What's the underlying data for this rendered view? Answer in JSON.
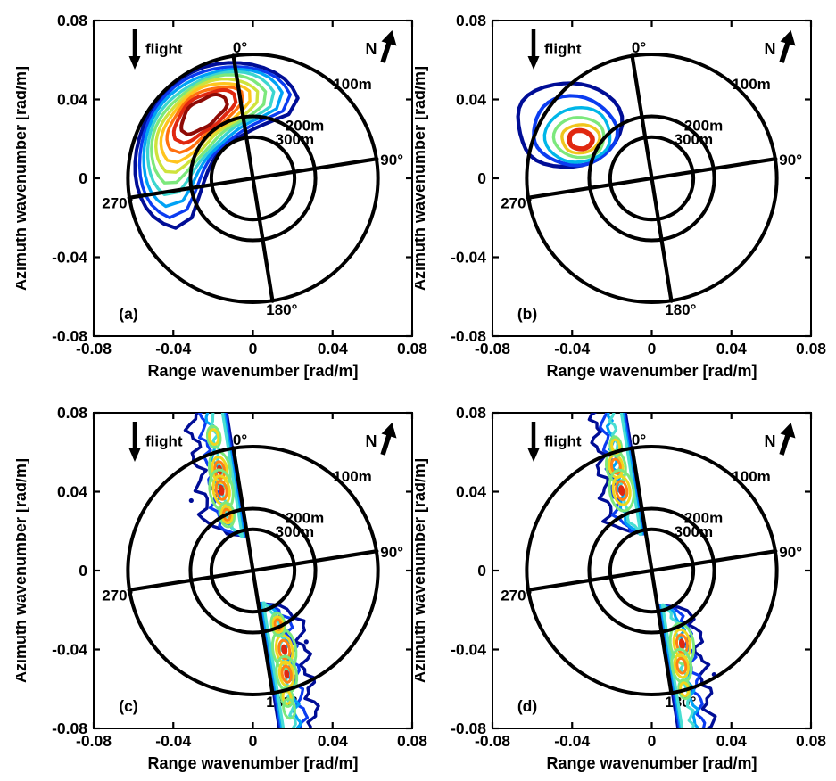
{
  "figure": {
    "background": "#ffffff",
    "description": "Four-panel figure of SAR ocean wave spectra in wavenumber space with polar wavelength/direction overlay"
  },
  "chart_data": {
    "type": "heatmap",
    "subtype": "contour-spectra",
    "layout": "2x2",
    "axes": {
      "x": {
        "label": "Range wavenumber [rad/m]",
        "range": [
          -0.08,
          0.08
        ],
        "tick_values": [
          -0.08,
          -0.04,
          0,
          0.04,
          0.08
        ],
        "ticks": [
          "-0.08",
          "-0.04",
          "0",
          "0.04",
          "0.08"
        ]
      },
      "y": {
        "label": "Azimuth wavenumber [rad/m]",
        "range": [
          -0.08,
          0.08
        ],
        "tick_values": [
          0.08,
          0.04,
          0,
          -0.04,
          -0.08
        ],
        "ticks": [
          "0.08",
          "0.04",
          "0",
          "-0.04",
          "-0.08"
        ]
      }
    },
    "polar_overlay": {
      "rotation_deg": 9,
      "outer_radius": 0.063,
      "rings": [
        {
          "label": "100m",
          "radius": 0.0628,
          "label_pos": [
            0.05,
            0.048
          ]
        },
        {
          "label": "200m",
          "radius": 0.0314,
          "label_pos": [
            0.026,
            0.027
          ]
        },
        {
          "label": "300m",
          "radius": 0.0209,
          "label_pos": [
            0.021,
            0.02
          ]
        }
      ],
      "angle_labels": [
        {
          "label": "0°",
          "pos": [
            -0.0065,
            0.0665
          ],
          "anchor": "middle"
        },
        {
          "label": "90°",
          "pos": [
            0.064,
            0.0095
          ],
          "anchor": "start"
        },
        {
          "label": "180°",
          "pos": [
            0.0145,
            -0.0665
          ],
          "anchor": "middle"
        },
        {
          "label": "270°",
          "pos": [
            -0.068,
            -0.0125
          ],
          "anchor": "middle"
        }
      ]
    },
    "annotations": {
      "flight_label": "flight",
      "north_label": "N"
    },
    "hot_palette": [
      "#7ce87c",
      "#f0d61e",
      "#ff8214",
      "#e02810"
    ],
    "panels": [
      {
        "id": "a",
        "label": "(a)",
        "kind": "crescent",
        "description": "Broad crescent-shaped spectral lobe in upper-left quadrant, peak wavelength ~150 m travelling toward ~320 deg",
        "peak_kx": -0.028,
        "peak_ky": 0.033,
        "palette": [
          "#000d96",
          "#0b3cf0",
          "#00a2f5",
          "#3cd6cf",
          "#7ce87c",
          "#cfe33c",
          "#ffc41e",
          "#ff700f",
          "#e02810",
          "#8e0b06"
        ],
        "crescent": {
          "r_mid": 0.0415,
          "levels": [
            {
              "a1": -123.0,
              "a2": 29.0,
              "hw": 0.0205,
              "color": 0,
              "sw": 4.0
            },
            {
              "a1": -115.5,
              "a2": 23.8,
              "hw": 0.0189,
              "color": 1,
              "sw": 3.4
            },
            {
              "a1": -108.0,
              "a2": 18.6,
              "hw": 0.0174,
              "color": 2,
              "sw": 3.4
            },
            {
              "a1": -100.5,
              "a2": 13.4,
              "hw": 0.0158,
              "color": 3,
              "sw": 3.4
            },
            {
              "a1": -93.0,
              "a2": 8.2,
              "hw": 0.0143,
              "color": 4,
              "sw": 3.4
            },
            {
              "a1": -85.5,
              "a2": 3.0,
              "hw": 0.0127,
              "color": 5,
              "sw": 3.4
            },
            {
              "a1": -78.0,
              "a2": -2.2,
              "hw": 0.0112,
              "color": 6,
              "sw": 3.4
            },
            {
              "a1": -70.5,
              "a2": -7.4,
              "hw": 0.0096,
              "color": 7,
              "sw": 3.4
            },
            {
              "a1": -63.0,
              "a2": -12.6,
              "hw": 0.0081,
              "color": 8,
              "sw": 4.0
            },
            {
              "a1": -56.0,
              "a2": -19.0,
              "hw": 0.0064,
              "color": 9,
              "sw": 4.0
            }
          ],
          "specks": [
            [
              0.004,
              0.0305
            ],
            [
              0.012,
              0.03
            ]
          ]
        }
      },
      {
        "id": "b",
        "label": "(b)",
        "kind": "rings",
        "description": "Single compact spectral peak in upper-left quadrant near kx=-0.036, ky=0.020 (wavelength ~150 m)",
        "peak_kx": -0.036,
        "peak_ky": 0.02,
        "palette": [
          "#000d96",
          "#0b3cf0",
          "#00b6e8",
          "#7ce87c",
          "#f0c61e",
          "#e02810"
        ],
        "rings": {
          "levels": [
            {
              "cx": -0.042,
              "cy": 0.027,
              "rx": 0.026,
              "ry": 0.0225,
              "color": 0,
              "wb": 0.06,
              "ph": 0.8,
              "sw": 4.2
            },
            {
              "cx": -0.039,
              "cy": 0.0242,
              "rx": 0.021,
              "ry": 0.0172,
              "color": 1,
              "wb": 0.045,
              "ph": 2.2,
              "sw": 4.0
            },
            {
              "cx": -0.037,
              "cy": 0.022,
              "rx": 0.0164,
              "ry": 0.014,
              "color": 2,
              "wb": 0.04,
              "ph": 3.9,
              "sw": 3.4
            },
            {
              "cx": -0.0363,
              "cy": 0.0207,
              "rx": 0.0126,
              "ry": 0.0104,
              "color": 3,
              "wb": 0.04,
              "ph": 5.1,
              "sw": 3.4
            },
            {
              "cx": -0.0358,
              "cy": 0.02,
              "rx": 0.0094,
              "ry": 0.0074,
              "color": 4,
              "wb": 0.05,
              "ph": 0.4,
              "sw": 3.4
            },
            {
              "cx": -0.0358,
              "cy": 0.0196,
              "rx": 0.0058,
              "ry": 0.0047,
              "color": 5,
              "wb": 0.04,
              "ph": 1.6,
              "sw": 5.5
            }
          ]
        }
      },
      {
        "id": "c",
        "label": "(c)",
        "kind": "lobes",
        "description": "Two antisymmetric elongated lobes hugging the rotated 0-180 deg axis (azimuth-travelling waves), noisy multi-peaked, |k| peak ~0.043",
        "peak_kx": -0.017,
        "peak_ky": 0.044,
        "palette": [
          "#000d96",
          "#0b3cf0",
          "#00a2f5",
          "#49ded2"
        ],
        "lobes": {
          "theta": 9,
          "lobeList": [
            {
              "u1": 0.018,
              "u2": 0.09,
              "side": -1,
              "levels": [
                {
                  "w": 0.019,
                  "color": 0,
                  "f": 430,
                  "ph": 0.7,
                  "sw": 3.4
                },
                {
                  "w": 0.0135,
                  "color": 1,
                  "f": 520,
                  "ph": 2.1,
                  "sw": 3.2
                },
                {
                  "w": 0.0103,
                  "color": 2,
                  "f": 600,
                  "ph": 3.6,
                  "sw": 3.2
                },
                {
                  "w": 0.0083,
                  "color": 3,
                  "f": 700,
                  "ph": 5.0,
                  "sw": 3.2
                }
              ]
            },
            {
              "u1": -0.09,
              "u2": -0.017,
              "side": 1,
              "levels": [
                {
                  "w": 0.019,
                  "color": 0,
                  "f": 450,
                  "ph": 3.3,
                  "sw": 3.4
                },
                {
                  "w": 0.0135,
                  "color": 1,
                  "f": 540,
                  "ph": 4.9,
                  "sw": 3.2
                },
                {
                  "w": 0.0103,
                  "color": 2,
                  "f": 620,
                  "ph": 0.8,
                  "sw": 3.2
                },
                {
                  "w": 0.0083,
                  "color": 3,
                  "f": 720,
                  "ph": 2.4,
                  "sw": 3.2
                }
              ]
            }
          ],
          "hotspots": [
            {
              "u": 0.053,
              "v": -0.0085,
              "ru": 0.0095,
              "rv": 0.0052,
              "n": 4
            },
            {
              "u": 0.0427,
              "v": -0.0093,
              "ru": 0.0105,
              "rv": 0.0058,
              "n": 4
            },
            {
              "u": 0.03,
              "v": -0.0085,
              "ru": 0.0062,
              "rv": 0.0036,
              "n": 3
            },
            {
              "u": 0.07,
              "v": -0.0088,
              "ru": 0.0055,
              "rv": 0.0032,
              "n": 2
            },
            {
              "u": -0.042,
              "v": 0.0093,
              "ru": 0.0105,
              "rv": 0.0058,
              "n": 4
            },
            {
              "u": -0.0545,
              "v": 0.0085,
              "ru": 0.0092,
              "rv": 0.005,
              "n": 4
            },
            {
              "u": -0.029,
              "v": 0.0082,
              "ru": 0.0058,
              "rv": 0.0034,
              "n": 3
            },
            {
              "u": -0.066,
              "v": 0.0068,
              "ru": 0.0048,
              "rv": 0.0028,
              "n": 2
            },
            {
              "u": -0.072,
              "v": 0.007,
              "ru": 0.005,
              "rv": 0.0028,
              "n": 1
            }
          ],
          "specks": [
            [
              -0.031,
              0.0355
            ],
            [
              0.0268,
              -0.0361
            ]
          ]
        }
      },
      {
        "id": "d",
        "label": "(d)",
        "kind": "lobes",
        "description": "Same two antisymmetric azimuth-axis lobes as (c) but narrower and smoother, |k| peak ~0.042",
        "peak_kx": -0.015,
        "peak_ky": 0.041,
        "palette": [
          "#000d96",
          "#0b3cf0",
          "#00a2f5",
          "#49ded2"
        ],
        "lobes": {
          "theta": 9,
          "lobeList": [
            {
              "u1": 0.019,
              "u2": 0.09,
              "side": -1,
              "levels": [
                {
                  "w": 0.017,
                  "color": 0,
                  "f": 460,
                  "ph": 1.5,
                  "sw": 3.4
                },
                {
                  "w": 0.0125,
                  "color": 1,
                  "f": 560,
                  "ph": 3.0,
                  "sw": 3.2
                },
                {
                  "w": 0.0095,
                  "color": 2,
                  "f": 640,
                  "ph": 4.4,
                  "sw": 3.2
                },
                {
                  "w": 0.0076,
                  "color": 3,
                  "f": 740,
                  "ph": 0.2,
                  "sw": 3.2
                }
              ]
            },
            {
              "u1": -0.09,
              "u2": -0.018,
              "side": 1,
              "levels": [
                {
                  "w": 0.0175,
                  "color": 0,
                  "f": 440,
                  "ph": 5.2,
                  "sw": 3.4
                },
                {
                  "w": 0.013,
                  "color": 1,
                  "f": 530,
                  "ph": 0.6,
                  "sw": 3.2
                },
                {
                  "w": 0.01,
                  "color": 2,
                  "f": 610,
                  "ph": 2.0,
                  "sw": 3.2
                },
                {
                  "w": 0.008,
                  "color": 3,
                  "f": 710,
                  "ph": 3.7,
                  "sw": 3.2
                }
              ]
            }
          ],
          "hotspots": [
            {
              "u": 0.055,
              "v": -0.0095,
              "ru": 0.0082,
              "rv": 0.0048,
              "n": 3
            },
            {
              "u": 0.0425,
              "v": -0.0086,
              "ru": 0.0105,
              "rv": 0.006,
              "n": 4
            },
            {
              "u": 0.065,
              "v": -0.008,
              "ru": 0.005,
              "rv": 0.0028,
              "n": 2
            },
            {
              "u": -0.0391,
              "v": 0.0092,
              "ru": 0.0105,
              "rv": 0.0058,
              "n": 4
            },
            {
              "u": -0.05,
              "v": 0.0072,
              "ru": 0.0085,
              "rv": 0.0048,
              "n": 3
            },
            {
              "u": -0.062,
              "v": 0.0068,
              "ru": 0.0048,
              "rv": 0.0028,
              "n": 2
            }
          ],
          "specks": [
            [
              0.0313,
              -0.0527
            ]
          ]
        }
      }
    ]
  }
}
